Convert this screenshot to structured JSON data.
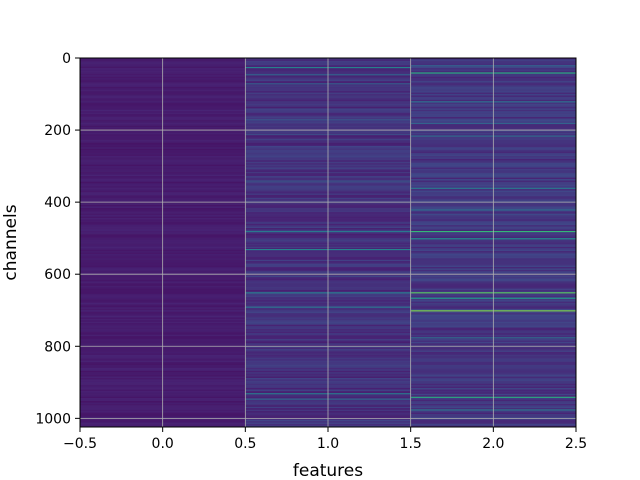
{
  "chart_data": {
    "type": "heatmap",
    "title": "",
    "xlabel": "features",
    "ylabel": "channels",
    "xlim": [
      -0.5,
      2.5
    ],
    "ylim": [
      1024,
      0
    ],
    "y_inverted": true,
    "grid": true,
    "colormap": "viridis",
    "n_rows": 1024,
    "columns": [
      0,
      1,
      2
    ],
    "x_ticks": [
      -0.5,
      0.0,
      0.5,
      1.0,
      1.5,
      2.0,
      2.5
    ],
    "x_tick_labels": [
      "−0.5",
      "0.0",
      "0.5",
      "1.0",
      "1.5",
      "2.0",
      "2.5"
    ],
    "y_ticks": [
      0,
      200,
      400,
      600,
      800,
      1000
    ],
    "y_tick_labels": [
      "0",
      "200",
      "400",
      "600",
      "800",
      "1000"
    ],
    "column_base_values": [
      0.1,
      0.18,
      0.2
    ],
    "highlighted_rows": [
      {
        "column": 1,
        "row": 25,
        "value": 0.55
      },
      {
        "column": 1,
        "row": 45,
        "value": 0.4
      },
      {
        "column": 1,
        "row": 70,
        "value": 0.38
      },
      {
        "column": 1,
        "row": 170,
        "value": 0.35
      },
      {
        "column": 1,
        "row": 210,
        "value": 0.3
      },
      {
        "column": 1,
        "row": 340,
        "value": 0.35
      },
      {
        "column": 1,
        "row": 480,
        "value": 0.5
      },
      {
        "column": 1,
        "row": 530,
        "value": 0.55
      },
      {
        "column": 1,
        "row": 650,
        "value": 0.5
      },
      {
        "column": 1,
        "row": 690,
        "value": 0.45
      },
      {
        "column": 1,
        "row": 930,
        "value": 0.5
      },
      {
        "column": 1,
        "row": 945,
        "value": 0.4
      },
      {
        "column": 2,
        "row": 20,
        "value": 0.4
      },
      {
        "column": 2,
        "row": 40,
        "value": 0.7
      },
      {
        "column": 2,
        "row": 120,
        "value": 0.45
      },
      {
        "column": 2,
        "row": 180,
        "value": 0.4
      },
      {
        "column": 2,
        "row": 215,
        "value": 0.45
      },
      {
        "column": 2,
        "row": 360,
        "value": 0.5
      },
      {
        "column": 2,
        "row": 420,
        "value": 0.45
      },
      {
        "column": 2,
        "row": 480,
        "value": 0.75
      },
      {
        "column": 2,
        "row": 500,
        "value": 0.6
      },
      {
        "column": 2,
        "row": 650,
        "value": 0.8
      },
      {
        "column": 2,
        "row": 665,
        "value": 0.65
      },
      {
        "column": 2,
        "row": 700,
        "value": 0.85
      },
      {
        "column": 2,
        "row": 775,
        "value": 0.45
      },
      {
        "column": 2,
        "row": 940,
        "value": 0.7
      },
      {
        "column": 2,
        "row": 975,
        "value": 0.5
      }
    ]
  }
}
